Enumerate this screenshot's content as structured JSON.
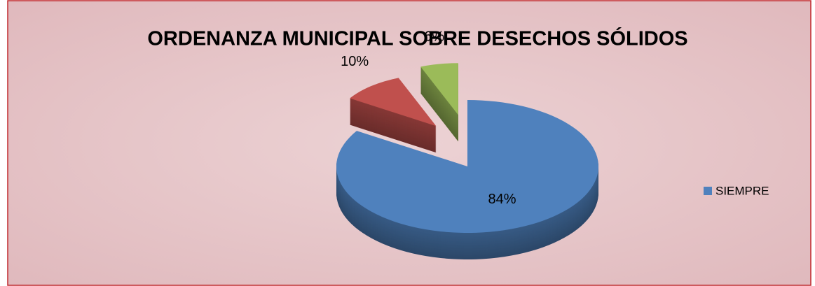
{
  "chart_data": {
    "type": "pie",
    "title": "ORDENANZA MUNICIPAL SOBRE DESECHOS SÓLIDOS",
    "categories": [
      "SIEMPRE",
      null,
      null
    ],
    "values": [
      84,
      10,
      6
    ],
    "value_labels": [
      "84%",
      "10%",
      "6%"
    ],
    "colors": [
      "#4f81bd",
      "#c0504d",
      "#9bbb59"
    ],
    "legend": "right"
  }
}
